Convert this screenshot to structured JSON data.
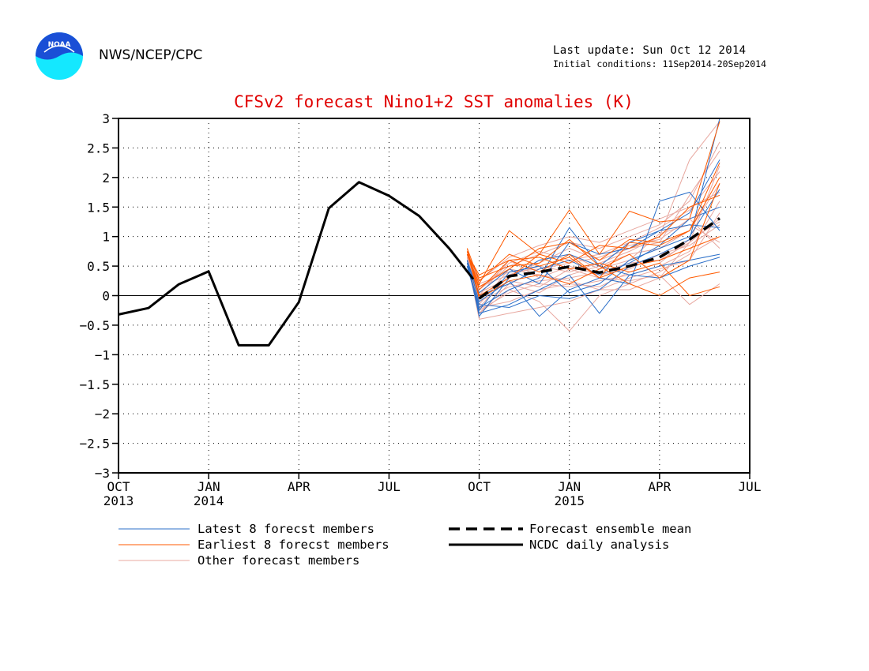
{
  "header": {
    "org": "NWS/NCEP/CPC",
    "logo_text": "NOAA",
    "last_update": "Last update: Sun Oct 12 2014",
    "initial_conditions": "Initial conditions: 11Sep2014-20Sep2014"
  },
  "colors": {
    "title": "#e00000",
    "latest": "#2b6fc9",
    "earliest": "#ff5a00",
    "other": "#e8a8a0",
    "analysis": "#000000"
  },
  "chart_data": {
    "type": "line",
    "title": "CFSv2 forecast Nino1+2 SST anomalies (K)",
    "xlabel": "",
    "ylabel": "",
    "ylim": [
      -3,
      3
    ],
    "xlim_months": [
      0,
      21
    ],
    "grid": true,
    "yticks": [
      {
        "v": 3,
        "label": "3"
      },
      {
        "v": 2.5,
        "label": "2.5"
      },
      {
        "v": 2,
        "label": "2"
      },
      {
        "v": 1.5,
        "label": "1.5"
      },
      {
        "v": 1,
        "label": "1"
      },
      {
        "v": 0.5,
        "label": "0.5"
      },
      {
        "v": 0,
        "label": "0"
      },
      {
        "v": -0.5,
        "label": "−0.5"
      },
      {
        "v": -1,
        "label": "−1"
      },
      {
        "v": -1.5,
        "label": "−1.5"
      },
      {
        "v": -2,
        "label": "−2"
      },
      {
        "v": -2.5,
        "label": "−2.5"
      },
      {
        "v": -3,
        "label": "−3"
      }
    ],
    "xticks": [
      {
        "m": 0,
        "label": "OCT",
        "year": "2013"
      },
      {
        "m": 3,
        "label": "JAN",
        "year": "2014"
      },
      {
        "m": 6,
        "label": "APR",
        "year": ""
      },
      {
        "m": 9,
        "label": "JUL",
        "year": ""
      },
      {
        "m": 12,
        "label": "OCT",
        "year": ""
      },
      {
        "m": 15,
        "label": "JAN",
        "year": "2015"
      },
      {
        "m": 18,
        "label": "APR",
        "year": ""
      },
      {
        "m": 21,
        "label": "JUL",
        "year": ""
      }
    ],
    "legend": {
      "placement": "bottom",
      "entries": [
        {
          "key": "latest",
          "label": "Latest 8 forecst members",
          "style": "thin"
        },
        {
          "key": "earliest",
          "label": "Earliest 8 forecst members",
          "style": "thin"
        },
        {
          "key": "other",
          "label": "Other forecast members",
          "style": "thin"
        },
        {
          "key": "mean",
          "label": "Forecast ensemble mean",
          "style": "dashed"
        },
        {
          "key": "analysis",
          "label": "NCDC daily analysis",
          "style": "thick"
        }
      ]
    },
    "analysis": {
      "name": "NCDC daily analysis",
      "x": [
        0,
        1,
        2,
        3,
        4,
        5,
        6,
        7,
        8,
        9,
        10,
        11,
        11.8
      ],
      "y": [
        -0.32,
        -0.21,
        0.19,
        0.41,
        -0.84,
        -0.84,
        -0.11,
        1.48,
        1.92,
        1.69,
        1.35,
        0.8,
        0.28
      ]
    },
    "ensemble_mean": {
      "name": "Forecast ensemble mean",
      "x": [
        12,
        13,
        14,
        15,
        16,
        17,
        18,
        19,
        20
      ],
      "y": [
        -0.05,
        0.33,
        0.4,
        0.49,
        0.39,
        0.5,
        0.65,
        0.95,
        1.31
      ]
    },
    "members": {
      "x": [
        11.6,
        12,
        13,
        14,
        15,
        16,
        17,
        18,
        19,
        20
      ],
      "latest": [
        [
          0.5,
          -0.2,
          0.1,
          0.3,
          1.15,
          0.5,
          0.9,
          1.1,
          1.2,
          1.15
        ],
        [
          0.55,
          -0.3,
          -0.15,
          0.1,
          0.35,
          -0.3,
          0.35,
          0.5,
          0.6,
          0.7
        ],
        [
          0.6,
          -0.1,
          0.25,
          -0.35,
          0.1,
          0.3,
          0.2,
          1.6,
          1.75,
          1.1
        ],
        [
          0.5,
          -0.25,
          0.4,
          0.5,
          0.05,
          0.2,
          0.6,
          0.8,
          1.0,
          1.8
        ],
        [
          0.6,
          -0.35,
          0.3,
          0.6,
          0.7,
          0.5,
          0.35,
          0.3,
          0.5,
          0.65
        ],
        [
          0.55,
          0.05,
          0.45,
          0.2,
          0.9,
          0.7,
          0.8,
          1.1,
          1.4,
          2.3
        ],
        [
          0.5,
          -0.15,
          -0.2,
          0.0,
          -0.05,
          0.1,
          0.5,
          0.7,
          0.95,
          3.0
        ],
        [
          0.6,
          0.0,
          0.2,
          0.45,
          0.6,
          0.35,
          0.55,
          0.85,
          1.3,
          1.5
        ]
      ],
      "earliest": [
        [
          0.7,
          0.2,
          1.1,
          0.7,
          1.45,
          0.7,
          1.43,
          1.25,
          1.3,
          2.95
        ],
        [
          0.75,
          0.1,
          0.6,
          0.4,
          0.7,
          0.3,
          0.9,
          0.85,
          1.1,
          2.0
        ],
        [
          0.7,
          0.3,
          0.5,
          0.55,
          0.95,
          0.5,
          0.2,
          0.0,
          0.3,
          0.4
        ],
        [
          0.8,
          0.0,
          0.3,
          0.7,
          0.55,
          0.85,
          0.8,
          1.0,
          1.5,
          1.7
        ],
        [
          0.7,
          0.35,
          0.6,
          0.65,
          0.45,
          0.55,
          0.4,
          0.55,
          0.0,
          0.15
        ],
        [
          0.75,
          -0.05,
          0.25,
          0.35,
          0.2,
          0.45,
          0.7,
          0.3,
          0.6,
          1.9
        ],
        [
          0.7,
          0.15,
          0.45,
          0.8,
          0.9,
          0.6,
          0.95,
          0.9,
          1.1,
          2.25
        ],
        [
          0.8,
          0.25,
          0.7,
          0.5,
          0.65,
          0.3,
          0.5,
          0.6,
          0.8,
          1.0
        ]
      ],
      "other": [
        [
          0.7,
          -0.3,
          0.1,
          -0.1,
          -0.6,
          0.0,
          0.2,
          0.4,
          0.7,
          1.0
        ],
        [
          0.6,
          -0.4,
          -0.3,
          -0.2,
          -0.1,
          0.1,
          0.1,
          0.3,
          0.9,
          1.3
        ],
        [
          0.65,
          0.1,
          0.5,
          0.7,
          0.9,
          0.8,
          1.0,
          1.2,
          1.6,
          2.6
        ],
        [
          0.55,
          -0.2,
          0.35,
          0.5,
          0.4,
          0.55,
          0.75,
          1.0,
          2.3,
          2.95
        ],
        [
          0.7,
          0.0,
          0.6,
          0.3,
          0.5,
          0.35,
          0.45,
          0.7,
          0.85,
          1.2
        ],
        [
          0.6,
          -0.1,
          0.15,
          0.25,
          0.3,
          0.4,
          0.55,
          0.6,
          0.9,
          2.2
        ],
        [
          0.75,
          0.2,
          0.4,
          0.45,
          0.55,
          0.65,
          0.85,
          0.95,
          1.3,
          0.8
        ],
        [
          0.65,
          -0.25,
          0.05,
          0.2,
          0.15,
          0.25,
          0.35,
          0.5,
          0.75,
          1.6
        ],
        [
          0.6,
          0.05,
          0.3,
          0.6,
          0.7,
          0.45,
          0.6,
          1.05,
          1.2,
          0.9
        ],
        [
          0.7,
          -0.15,
          0.45,
          0.35,
          0.25,
          0.1,
          0.3,
          0.45,
          0.6,
          1.4
        ],
        [
          0.55,
          -0.3,
          0.2,
          0.05,
          0.35,
          0.5,
          0.7,
          0.8,
          1.1,
          1.9
        ],
        [
          0.65,
          0.1,
          0.55,
          0.75,
          0.6,
          0.7,
          0.9,
          1.15,
          1.45,
          2.1
        ],
        [
          0.7,
          -0.05,
          0.25,
          0.15,
          0.45,
          0.3,
          0.25,
          0.35,
          -0.15,
          0.2
        ],
        [
          0.6,
          0.15,
          0.35,
          0.55,
          0.8,
          0.6,
          0.8,
          0.9,
          1.7,
          2.45
        ],
        [
          0.65,
          -0.2,
          -0.1,
          0.1,
          0.2,
          0.15,
          0.4,
          0.55,
          0.95,
          1.25
        ],
        [
          0.7,
          0.25,
          0.65,
          0.85,
          1.0,
          0.9,
          1.1,
          1.3,
          1.5,
          1.75
        ]
      ]
    }
  }
}
